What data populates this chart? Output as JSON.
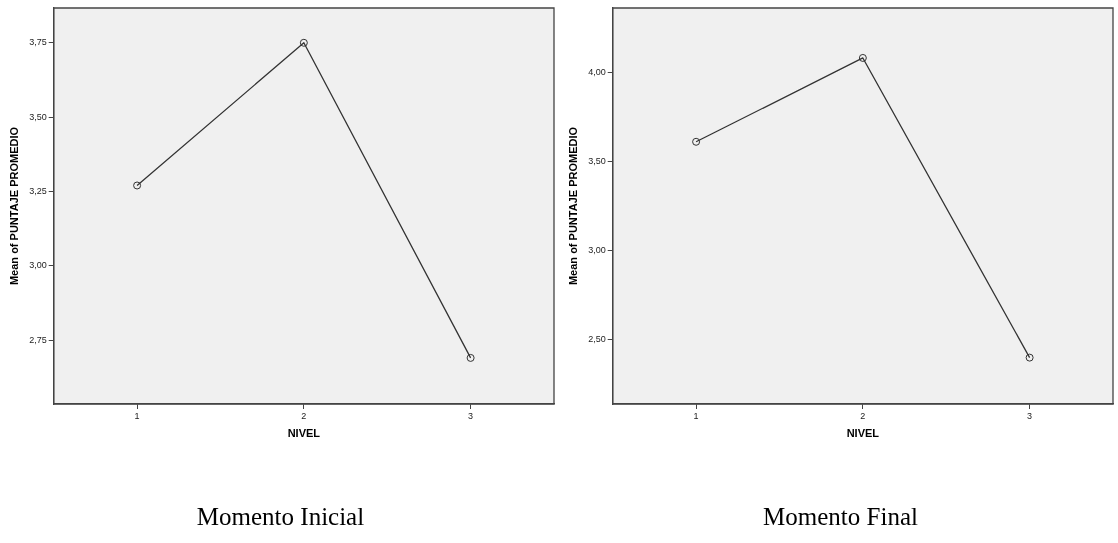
{
  "chart_data": [
    {
      "type": "line",
      "title": "Momento Inicial",
      "xlabel": "NIVEL",
      "ylabel": "Mean of PUNTAJE PROMEDIO",
      "categories": [
        "1",
        "2",
        "3"
      ],
      "series": [
        {
          "color": "#333333",
          "values": [
            3.27,
            3.75,
            2.69
          ]
        }
      ],
      "ylim": [
        2.535,
        3.867
      ],
      "yticks": [
        {
          "value": 2.75,
          "label": "2,75"
        },
        {
          "value": 3.0,
          "label": "3,00"
        },
        {
          "value": 3.25,
          "label": "3,25"
        },
        {
          "value": 3.5,
          "label": "3,50"
        },
        {
          "value": 3.75,
          "label": "3,75"
        }
      ],
      "grid": false,
      "legend": false,
      "marker": "circle",
      "line_style": "solid"
    },
    {
      "type": "line",
      "title": "Momento Final",
      "xlabel": "NIVEL",
      "ylabel": "Mean of PUNTAJE PROMEDIO",
      "categories": [
        "1",
        "2",
        "3"
      ],
      "series": [
        {
          "color": "#333333",
          "values": [
            3.61,
            4.08,
            2.4
          ]
        }
      ],
      "ylim": [
        2.14,
        4.36
      ],
      "yticks": [
        {
          "value": 2.5,
          "label": "2,50"
        },
        {
          "value": 3.0,
          "label": "3,00"
        },
        {
          "value": 3.5,
          "label": "3,50"
        },
        {
          "value": 4.0,
          "label": "4,00"
        }
      ],
      "grid": false,
      "legend": false,
      "marker": "circle",
      "line_style": "solid"
    }
  ]
}
